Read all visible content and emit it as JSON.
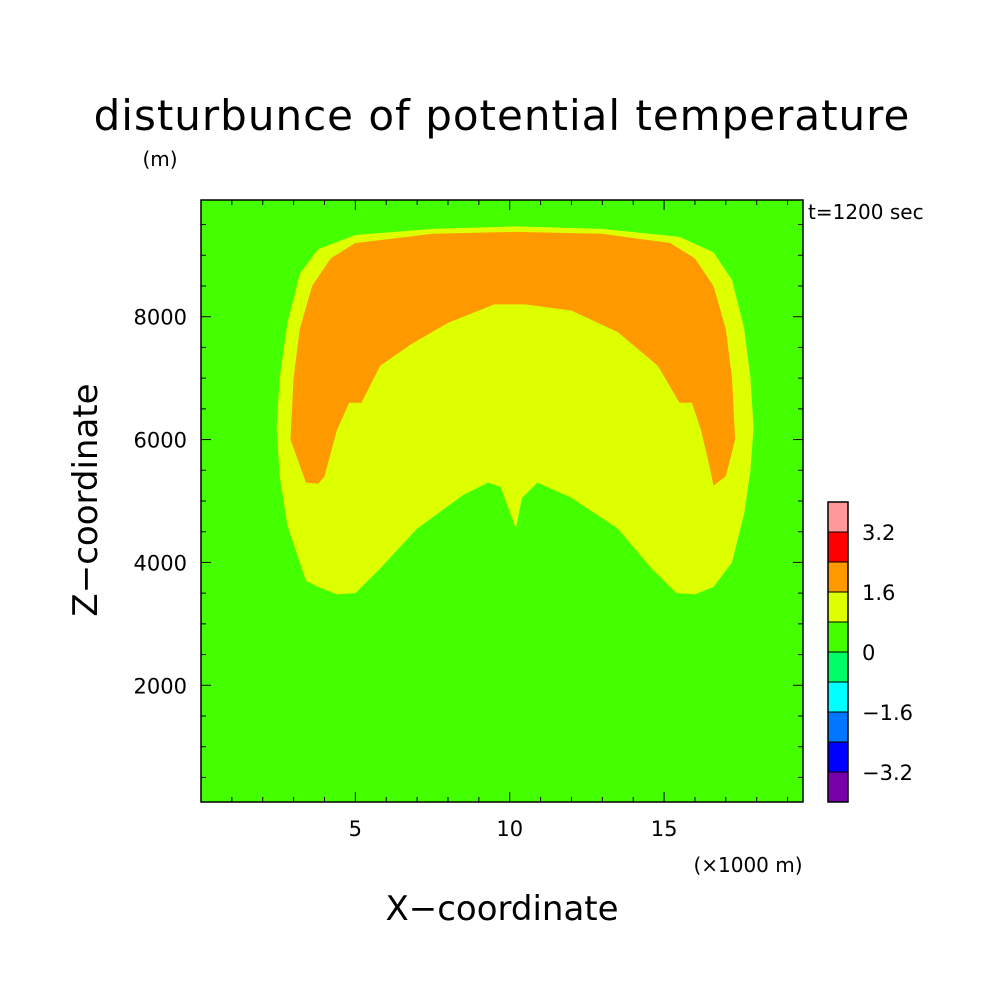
{
  "chart_data": {
    "type": "heatmap",
    "title": "disturbunce of potential temperature",
    "subtitle_unit": "(m)",
    "annotation": "t=1200 sec",
    "xlabel": "X−coordinate",
    "xunit": "(×1000 m)",
    "ylabel": "Z−coordinate",
    "xlim": [
      0,
      19.5
    ],
    "ylim": [
      100,
      9900
    ],
    "xticks": [
      {
        "value": 5,
        "label": "5"
      },
      {
        "value": 10,
        "label": "10"
      },
      {
        "value": 15,
        "label": "15"
      }
    ],
    "yticks": [
      {
        "value": 2000,
        "label": "2000"
      },
      {
        "value": 4000,
        "label": "4000"
      },
      {
        "value": 6000,
        "label": "6000"
      },
      {
        "value": 8000,
        "label": "8000"
      }
    ],
    "background_level": {
      "range": [
        0,
        0.8
      ],
      "color": "#44ff00"
    },
    "contour_regions": [
      {
        "name": "level 0.8 to 1.6",
        "color": "#ddff00",
        "outline": [
          [
            3.4,
            3700
          ],
          [
            3.8,
            3600
          ],
          [
            4.4,
            3480
          ],
          [
            5.0,
            3500
          ],
          [
            5.8,
            3900
          ],
          [
            7.0,
            4550
          ],
          [
            8.5,
            5100
          ],
          [
            9.3,
            5300
          ],
          [
            9.7,
            5230
          ],
          [
            10.2,
            4550
          ],
          [
            10.4,
            5050
          ],
          [
            10.9,
            5300
          ],
          [
            12.0,
            5050
          ],
          [
            13.5,
            4550
          ],
          [
            14.6,
            3900
          ],
          [
            15.4,
            3500
          ],
          [
            16.0,
            3480
          ],
          [
            16.6,
            3600
          ],
          [
            17.2,
            4000
          ],
          [
            17.6,
            4800
          ],
          [
            17.8,
            5500
          ],
          [
            17.9,
            6200
          ],
          [
            17.8,
            7000
          ],
          [
            17.6,
            7800
          ],
          [
            17.2,
            8600
          ],
          [
            16.6,
            9050
          ],
          [
            15.5,
            9300
          ],
          [
            13.0,
            9430
          ],
          [
            10.2,
            9470
          ],
          [
            7.5,
            9430
          ],
          [
            5.0,
            9330
          ],
          [
            3.8,
            9100
          ],
          [
            3.2,
            8700
          ],
          [
            2.8,
            7900
          ],
          [
            2.55,
            7000
          ],
          [
            2.45,
            6200
          ],
          [
            2.55,
            5400
          ],
          [
            2.8,
            4600
          ]
        ]
      },
      {
        "name": "level 1.6 to 2.4",
        "color": "#ff9900",
        "outline": [
          [
            2.9,
            6000
          ],
          [
            3.0,
            7000
          ],
          [
            3.2,
            7800
          ],
          [
            3.6,
            8500
          ],
          [
            4.2,
            8950
          ],
          [
            5.0,
            9200
          ],
          [
            7.5,
            9350
          ],
          [
            10.2,
            9380
          ],
          [
            13.0,
            9350
          ],
          [
            15.2,
            9200
          ],
          [
            16.0,
            8950
          ],
          [
            16.6,
            8500
          ],
          [
            17.0,
            7800
          ],
          [
            17.2,
            7000
          ],
          [
            17.3,
            6000
          ],
          [
            17.0,
            5400
          ],
          [
            16.6,
            5250
          ],
          [
            16.5,
            5500
          ],
          [
            16.2,
            6150
          ],
          [
            15.9,
            6600
          ],
          [
            15.5,
            6600
          ],
          [
            14.8,
            7200
          ],
          [
            13.5,
            7750
          ],
          [
            12.0,
            8100
          ],
          [
            10.5,
            8200
          ],
          [
            9.5,
            8200
          ],
          [
            8.0,
            7900
          ],
          [
            6.8,
            7550
          ],
          [
            5.8,
            7200
          ],
          [
            5.2,
            6600
          ],
          [
            4.8,
            6600
          ],
          [
            4.4,
            6150
          ],
          [
            4.0,
            5400
          ],
          [
            3.8,
            5280
          ],
          [
            3.4,
            5300
          ]
        ]
      }
    ],
    "colorbar": {
      "levels": [
        -4.0,
        -3.2,
        -2.4,
        -1.6,
        -0.8,
        0,
        0.8,
        1.6,
        2.4,
        3.2,
        4.0
      ],
      "colors": [
        "#7700aa",
        "#0000ff",
        "#0077ff",
        "#00ffff",
        "#00ff66",
        "#44ff00",
        "#ddff00",
        "#ff9900",
        "#ff0000",
        "#ff9999"
      ],
      "labels": [
        {
          "value": -3.2,
          "label": "−3.2"
        },
        {
          "value": -1.6,
          "label": "−1.6"
        },
        {
          "value": 0,
          "label": "0"
        },
        {
          "value": 1.6,
          "label": "1.6"
        },
        {
          "value": 3.2,
          "label": "3.2"
        }
      ]
    }
  }
}
